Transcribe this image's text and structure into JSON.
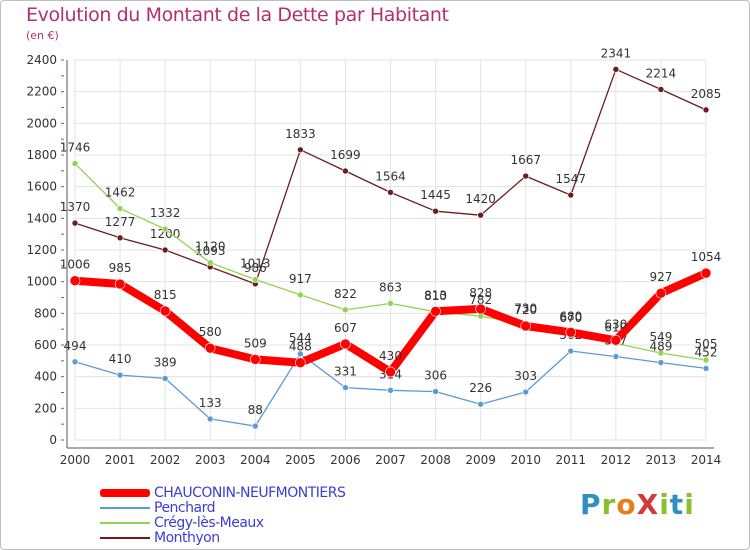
{
  "title": "Evolution du Montant de la Dette par Habitant",
  "unit": "(en €)",
  "logo": "ProXiti",
  "chart_data": {
    "type": "line",
    "categories": [
      "2000",
      "2001",
      "2002",
      "2003",
      "2004",
      "2005",
      "2006",
      "2007",
      "2008",
      "2009",
      "2010",
      "2011",
      "2012",
      "2013",
      "2014"
    ],
    "ylim": [
      0,
      2400
    ],
    "yticks": [
      0,
      200,
      400,
      600,
      800,
      1000,
      1200,
      1400,
      1600,
      1800,
      2000,
      2200,
      2400
    ],
    "grid": true,
    "legend_position": "bottom-left",
    "series": [
      {
        "name": "Monthyon",
        "color": "#6b1d1d",
        "width": 1.3,
        "marker": 3,
        "values": [
          1370,
          1277,
          1200,
          1093,
          986,
          1833,
          1699,
          1564,
          1445,
          1420,
          1667,
          1547,
          2341,
          2214,
          2085
        ],
        "labels": [
          "1370",
          "1277",
          "1200",
          "1093",
          "986",
          "1833",
          "1699",
          "1564",
          "1445",
          "1420",
          "1667",
          "1547",
          "2341",
          "2214",
          "2085"
        ]
      },
      {
        "name": "Crégy-lès-Meaux",
        "color": "#8fd450",
        "width": 1.3,
        "marker": 3,
        "values": [
          1746,
          1462,
          1332,
          1120,
          1013,
          917,
          822,
          863,
          810,
          782,
          730,
          670,
          610,
          549,
          505
        ],
        "labels": [
          "1746",
          "1462",
          "1332",
          "1120",
          "1013",
          "917",
          "822",
          "863",
          "810",
          "782",
          "730",
          "670",
          "610",
          "549",
          "505"
        ]
      },
      {
        "name": "Penchard",
        "color": "#5b9bd5",
        "width": 1.3,
        "marker": 3,
        "values": [
          494,
          410,
          389,
          133,
          88,
          544,
          331,
          314,
          306,
          226,
          303,
          562,
          527,
          489,
          452
        ],
        "labels": [
          "494",
          "410",
          "389",
          "133",
          "88",
          "544",
          "331",
          "314",
          "306",
          "226",
          "303",
          "562",
          "527",
          "489",
          "452"
        ]
      },
      {
        "name": "CHAUCONIN-NEUFMONTIERS",
        "color": "#ff0000",
        "width": 8,
        "marker": 5,
        "values": [
          1006,
          985,
          815,
          580,
          509,
          488,
          607,
          430,
          813,
          828,
          720,
          680,
          630,
          927,
          1054
        ],
        "labels": [
          "1006",
          "985",
          "815",
          "580",
          "509",
          "488",
          "607",
          "430",
          "813",
          "828",
          "720",
          "680",
          "630",
          "927",
          "1054"
        ]
      }
    ]
  },
  "legend": [
    {
      "label": "CHAUCONIN-NEUFMONTIERS",
      "color": "#ff0000",
      "thickness": 8
    },
    {
      "label": "Penchard",
      "color": "#5b9bd5",
      "thickness": 2
    },
    {
      "label": "Crégy-lès-Meaux",
      "color": "#8fd450",
      "thickness": 2
    },
    {
      "label": "Monthyon",
      "color": "#6b1d1d",
      "thickness": 2
    }
  ]
}
